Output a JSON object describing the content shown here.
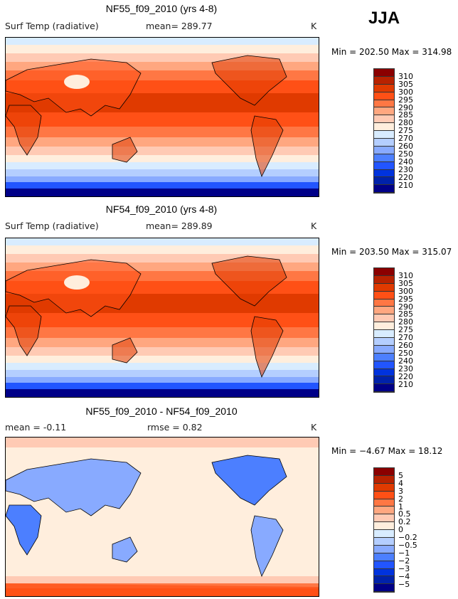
{
  "season": "JJA",
  "units": "K",
  "panels": [
    {
      "title": "NF55_f09_2010 (yrs 4-8)",
      "variable": "Surf Temp (radiative)",
      "stat1": "mean=  289.77",
      "stat2": "",
      "minmax": "Min = 202.50 Max = 314.98",
      "type": "abs"
    },
    {
      "title": "NF54_f09_2010 (yrs 4-8)",
      "variable": "Surf Temp (radiative)",
      "stat1": "mean=  289.89",
      "stat2": "",
      "minmax": "Min = 203.50 Max = 315.07",
      "type": "abs"
    },
    {
      "title": "NF55_f09_2010 - NF54_f09_2010",
      "variable": "mean =   -0.11",
      "stat1": "rmse =    0.82",
      "stat2": "",
      "minmax": "Min =   −4.67 Max =   18.12",
      "type": "diff"
    }
  ],
  "colorbar_colors": [
    "#8b0000",
    "#b82200",
    "#e03a00",
    "#ff5016",
    "#ff7744",
    "#ffa780",
    "#ffcab4",
    "#ffeedd",
    "#d8ecff",
    "#b4ceff",
    "#88aaff",
    "#4c7fff",
    "#2255ff",
    "#0033dd",
    "#0022aa",
    "#000088"
  ],
  "abs_levels": [
    "310",
    "305",
    "300",
    "295",
    "290",
    "285",
    "280",
    "275",
    "270",
    "260",
    "250",
    "240",
    "230",
    "220",
    "210"
  ],
  "diff_levels": [
    "5",
    "4",
    "3",
    "2",
    "1",
    "0.5",
    "0.2",
    "0",
    "−0.2",
    "−0.5",
    "−1",
    "−2",
    "−3",
    "−4",
    "−5"
  ]
}
